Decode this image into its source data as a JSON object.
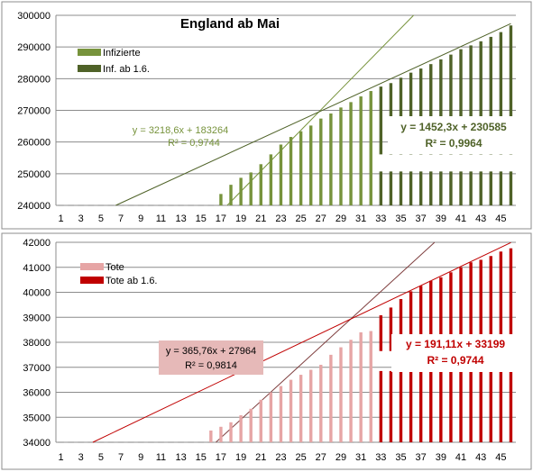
{
  "chart_data": [
    {
      "type": "bar",
      "title": "England ab Mai",
      "ylim": [
        240000,
        300000
      ],
      "y_ticks": [
        "240000",
        "250000",
        "260000",
        "270000",
        "280000",
        "290000",
        "300000"
      ],
      "x_ticks": [
        "1",
        "3",
        "5",
        "7",
        "9",
        "11",
        "13",
        "15",
        "17",
        "19",
        "21",
        "23",
        "25",
        "27",
        "29",
        "31",
        "33",
        "35",
        "37",
        "39",
        "41",
        "43",
        "45"
      ],
      "series": [
        {
          "name": "Infizierte",
          "color": "#77933c",
          "x": [
            17,
            18,
            19,
            20,
            21,
            22,
            23,
            24,
            25,
            26,
            27,
            28,
            29,
            30,
            31,
            32
          ],
          "values": [
            243600,
            246500,
            248700,
            250400,
            253000,
            256100,
            259200,
            261600,
            263400,
            265200,
            267400,
            269000,
            270900,
            272600,
            274400,
            276100
          ]
        },
        {
          "name": "Inf. ab 1.6.",
          "color": "#4f6228",
          "x": [
            33,
            34,
            35,
            36,
            37,
            38,
            39,
            40,
            41,
            42,
            43,
            44,
            45,
            46
          ],
          "values": [
            277500,
            278600,
            280300,
            281900,
            283200,
            284600,
            286100,
            287600,
            289300,
            290500,
            291800,
            293200,
            294700,
            296800
          ],
          "gap": [
            250700,
            256100
          ]
        }
      ],
      "trendlines": [
        {
          "series": "Infizierte",
          "slope": 3218.6,
          "intercept": 183264,
          "equation": "y = 3218,6x + 183264",
          "r2": "R² = 0,9744",
          "color": "#77933c"
        },
        {
          "series": "Inf. ab 1.6.",
          "slope": 1452.3,
          "intercept": 230585,
          "equation": "y = 1452,3x + 230585",
          "r2": "R² = 0,9964",
          "color": "#4f6228"
        }
      ],
      "legend": "top-left",
      "grid": true
    },
    {
      "type": "bar",
      "title": "",
      "ylim": [
        34000,
        42000
      ],
      "y_ticks": [
        "34000",
        "35000",
        "36000",
        "37000",
        "38000",
        "39000",
        "40000",
        "41000",
        "42000"
      ],
      "x_ticks": [
        "1",
        "3",
        "5",
        "7",
        "9",
        "11",
        "13",
        "15",
        "17",
        "19",
        "21",
        "23",
        "25",
        "27",
        "29",
        "31",
        "33",
        "35",
        "37",
        "39",
        "41",
        "43",
        "45"
      ],
      "series": [
        {
          "name": "Tote",
          "color": "#e6a5a5",
          "x": [
            16,
            17,
            18,
            19,
            20,
            21,
            22,
            23,
            24,
            25,
            26,
            27,
            28,
            29,
            30,
            31,
            32
          ],
          "values": [
            34470,
            34620,
            34800,
            35080,
            35340,
            35700,
            36000,
            36250,
            36500,
            36700,
            36900,
            37100,
            37500,
            37800,
            38100,
            38400,
            38450
          ]
        },
        {
          "name": "Tote ab 1.6.",
          "color": "#c00000",
          "x": [
            33,
            34,
            35,
            36,
            37,
            38,
            39,
            40,
            41,
            42,
            43,
            44,
            45,
            46
          ],
          "values": [
            39080,
            39390,
            39730,
            40040,
            40260,
            40460,
            40600,
            40800,
            41000,
            41200,
            41300,
            41450,
            41630,
            41760
          ],
          "gap": [
            36850,
            37650
          ]
        }
      ],
      "trendlines": [
        {
          "series": "Tote",
          "slope": 365.76,
          "intercept": 27964,
          "equation": "y = 365,76x + 27964",
          "r2": "R² = 0,9814",
          "color": "#7f3f3f"
        },
        {
          "series": "Tote ab 1.6.",
          "slope": 191.11,
          "intercept": 33199,
          "equation": "y = 191,11x + 33199",
          "r2": "R² = 0,9744",
          "color": "#c00000"
        }
      ],
      "legend": "top-left",
      "grid": true
    }
  ]
}
